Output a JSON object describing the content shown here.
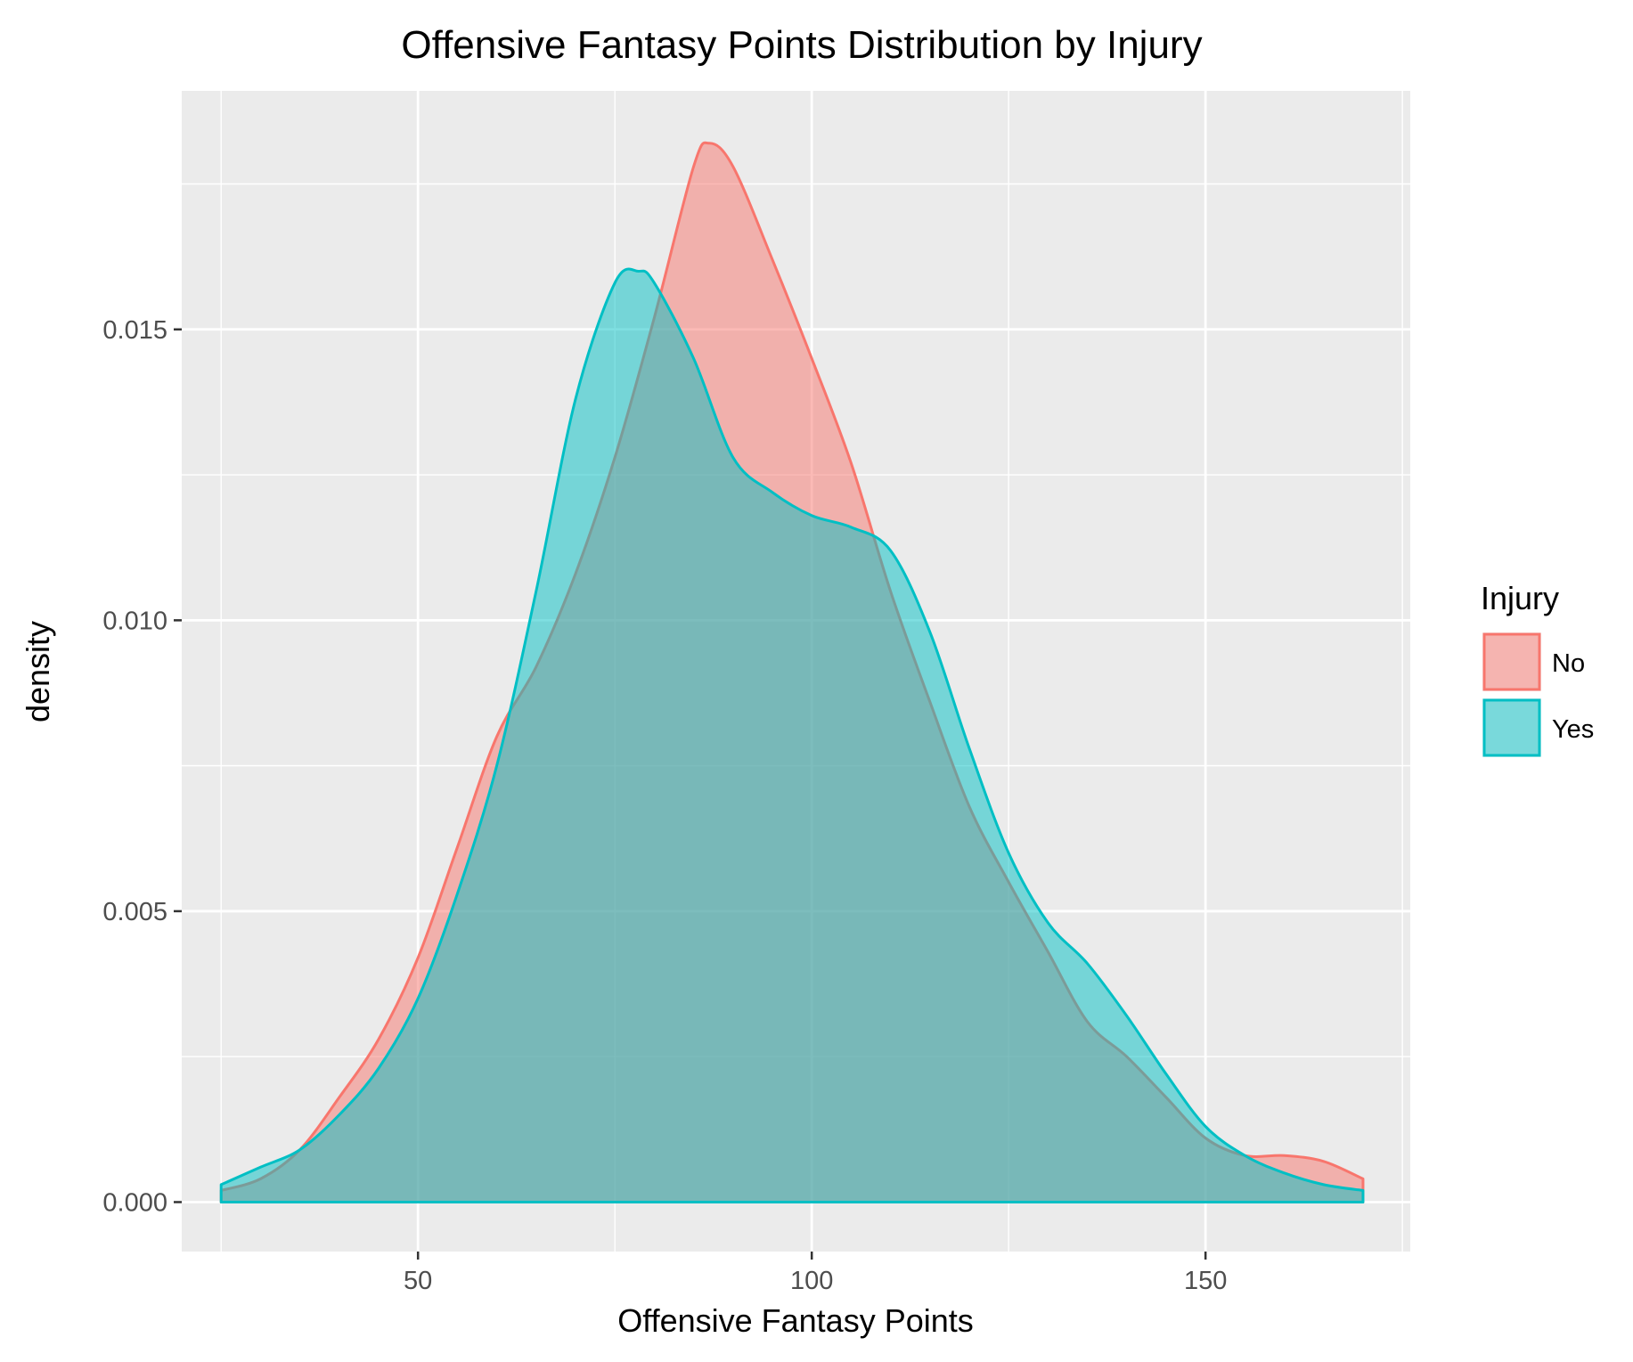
{
  "chart_data": {
    "type": "area",
    "title": "Offensive Fantasy Points Distribution by Injury",
    "xlabel": "Offensive Fantasy Points",
    "ylabel": "density",
    "xlim": [
      20,
      176
    ],
    "ylim": [
      -0.00085,
      0.0191
    ],
    "x_ticks": [
      50,
      100,
      150
    ],
    "x_tick_labels": [
      "50",
      "100",
      "150"
    ],
    "y_ticks": [
      0.0,
      0.005,
      0.01,
      0.015
    ],
    "y_tick_labels": [
      "0.000",
      "0.005",
      "0.010",
      "0.015"
    ],
    "grid": true,
    "legend": {
      "title": "Injury",
      "position": "right"
    },
    "colors": {
      "No": "#F8766D",
      "Yes": "#00BFC4",
      "panel": "#EBEBEB",
      "grid": "#FFFFFF"
    },
    "series": [
      {
        "name": "No",
        "x": [
          25,
          30,
          35,
          40,
          45,
          50,
          55,
          60,
          65,
          70,
          75,
          80,
          85,
          87,
          90,
          95,
          100,
          105,
          110,
          115,
          120,
          125,
          130,
          135,
          140,
          145,
          150,
          155,
          160,
          165,
          170
        ],
        "y": [
          0.0002,
          0.0004,
          0.0009,
          0.0018,
          0.0028,
          0.0042,
          0.0061,
          0.008,
          0.0092,
          0.0108,
          0.0128,
          0.0152,
          0.0178,
          0.0182,
          0.0178,
          0.0162,
          0.0145,
          0.0127,
          0.0105,
          0.0086,
          0.0068,
          0.0055,
          0.0043,
          0.0031,
          0.0025,
          0.0018,
          0.0011,
          0.0008,
          0.0008,
          0.0007,
          0.0004
        ]
      },
      {
        "name": "Yes",
        "x": [
          25,
          30,
          35,
          40,
          45,
          50,
          55,
          60,
          65,
          70,
          75,
          78,
          80,
          85,
          90,
          95,
          100,
          105,
          110,
          115,
          120,
          125,
          130,
          135,
          140,
          145,
          150,
          155,
          160,
          165,
          170
        ],
        "y": [
          0.0003,
          0.0006,
          0.0009,
          0.0015,
          0.0023,
          0.0035,
          0.0053,
          0.0075,
          0.0105,
          0.0138,
          0.0158,
          0.016,
          0.0158,
          0.0145,
          0.0128,
          0.0122,
          0.0118,
          0.0116,
          0.0112,
          0.0098,
          0.0078,
          0.006,
          0.0048,
          0.0041,
          0.0032,
          0.0022,
          0.0013,
          0.0008,
          0.0005,
          0.0003,
          0.0002
        ]
      }
    ]
  }
}
